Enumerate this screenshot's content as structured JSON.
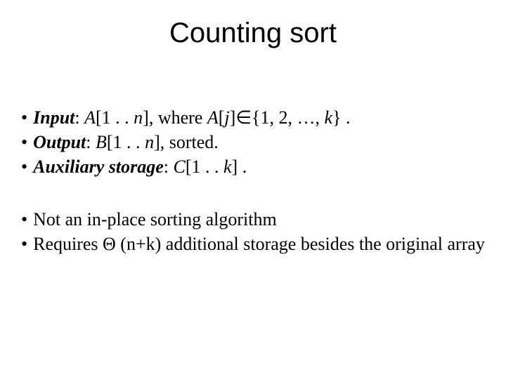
{
  "title": "Counting sort",
  "block1": {
    "line1": {
      "label": "Input",
      "text1": ": ",
      "var1": "A",
      "text2": "[1 . . ",
      "var2": "n",
      "text3": "], where ",
      "var3": "A",
      "text4": "[",
      "var4": "j",
      "text5": "]∈{1, 2, …, ",
      "var5": "k",
      "text6": "} ."
    },
    "line2": {
      "label": "Output",
      "text1": ": ",
      "var1": "B",
      "text2": "[1 . . ",
      "var2": "n",
      "text3": "], sorted."
    },
    "line3": {
      "label": "Auxiliary storage",
      "text1": ": ",
      "var1": "C",
      "text2": "[1 . . ",
      "var2": "k",
      "text3": "] ."
    }
  },
  "block2": {
    "line1": "Not an in-place sorting algorithm",
    "line2": "Requires Θ (n+k) additional storage besides the original array"
  },
  "colors": {
    "background": "#ffffff",
    "text": "#000000"
  },
  "fonts": {
    "title_family": "Arial",
    "title_size": 40,
    "body_family": "Times New Roman",
    "body_size": 26
  }
}
